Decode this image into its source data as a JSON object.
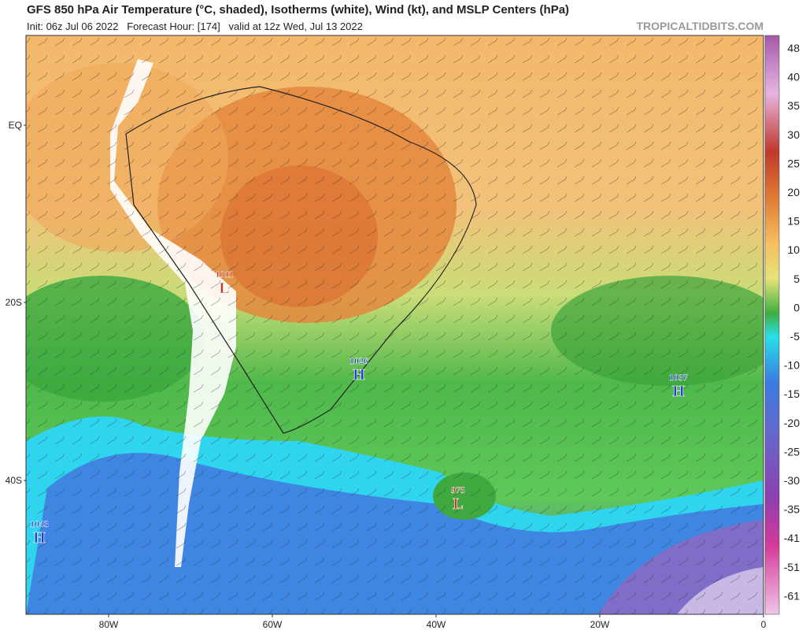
{
  "header": {
    "title": "GFS 850 hPa Air Temperature (°C, shaded), Isotherms (white), Wind (kt), and MSLP Centers (hPa)",
    "subtitle": "Init: 06z Jul 06 2022   Forecast Hour: [174]   valid at 12z Wed, Jul 13 2022",
    "watermark": "TROPICALTIDBITS.COM"
  },
  "map": {
    "lat_labels": [
      "EQ",
      "20S",
      "40S"
    ],
    "lon_labels": [
      "80W",
      "60W",
      "40W",
      "20W",
      "0"
    ],
    "pressure_centers": [
      {
        "pressure": 1011,
        "type": "L"
      },
      {
        "pressure": 1026,
        "type": "H"
      },
      {
        "pressure": 1037,
        "type": "H"
      },
      {
        "pressure": 975,
        "type": "L"
      },
      {
        "pressure": 1043,
        "type": "H"
      }
    ]
  },
  "colorbar": {
    "labels": [
      48,
      40,
      35,
      30,
      25,
      20,
      15,
      10,
      5,
      0,
      -5,
      -10,
      -15,
      -20,
      -25,
      -30,
      -35,
      -41,
      -51,
      -61
    ]
  }
}
